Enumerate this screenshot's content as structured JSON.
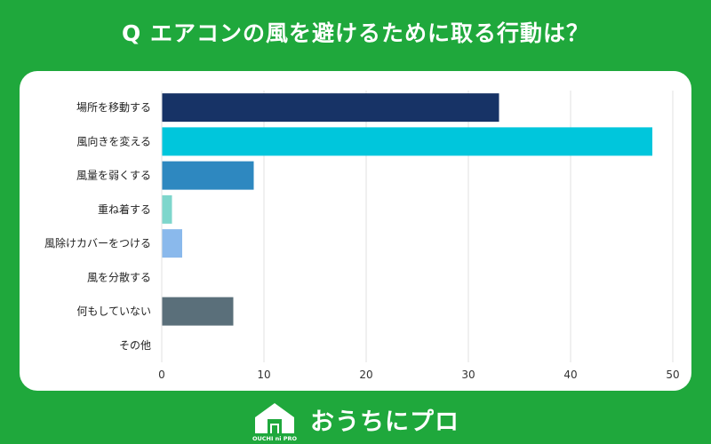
{
  "title": "Q エアコンの風を避けるために取る行動は？",
  "brand": {
    "name": "おうちにプロ",
    "logo_text": "OUCHI ni PRO"
  },
  "chart_data": {
    "type": "bar",
    "orientation": "horizontal",
    "categories": [
      "場所を移動する",
      "風向きを変える",
      "風量を弱くする",
      "重ね着する",
      "風除けカバーをつける",
      "風を分散する",
      "何もしていない",
      "その他"
    ],
    "values": [
      33,
      48,
      9,
      1,
      2,
      0,
      7,
      0
    ],
    "colors": [
      "#173366",
      "#00c6dc",
      "#2e88c0",
      "#7ed6cc",
      "#8ab9ec",
      "#aaaaaa",
      "#5a6f7a",
      "#aaaaaa"
    ],
    "xlim": [
      0,
      50
    ],
    "xticks": [
      0,
      10,
      20,
      30,
      40,
      50
    ],
    "grid": true,
    "xlabel": "",
    "ylabel": ""
  }
}
